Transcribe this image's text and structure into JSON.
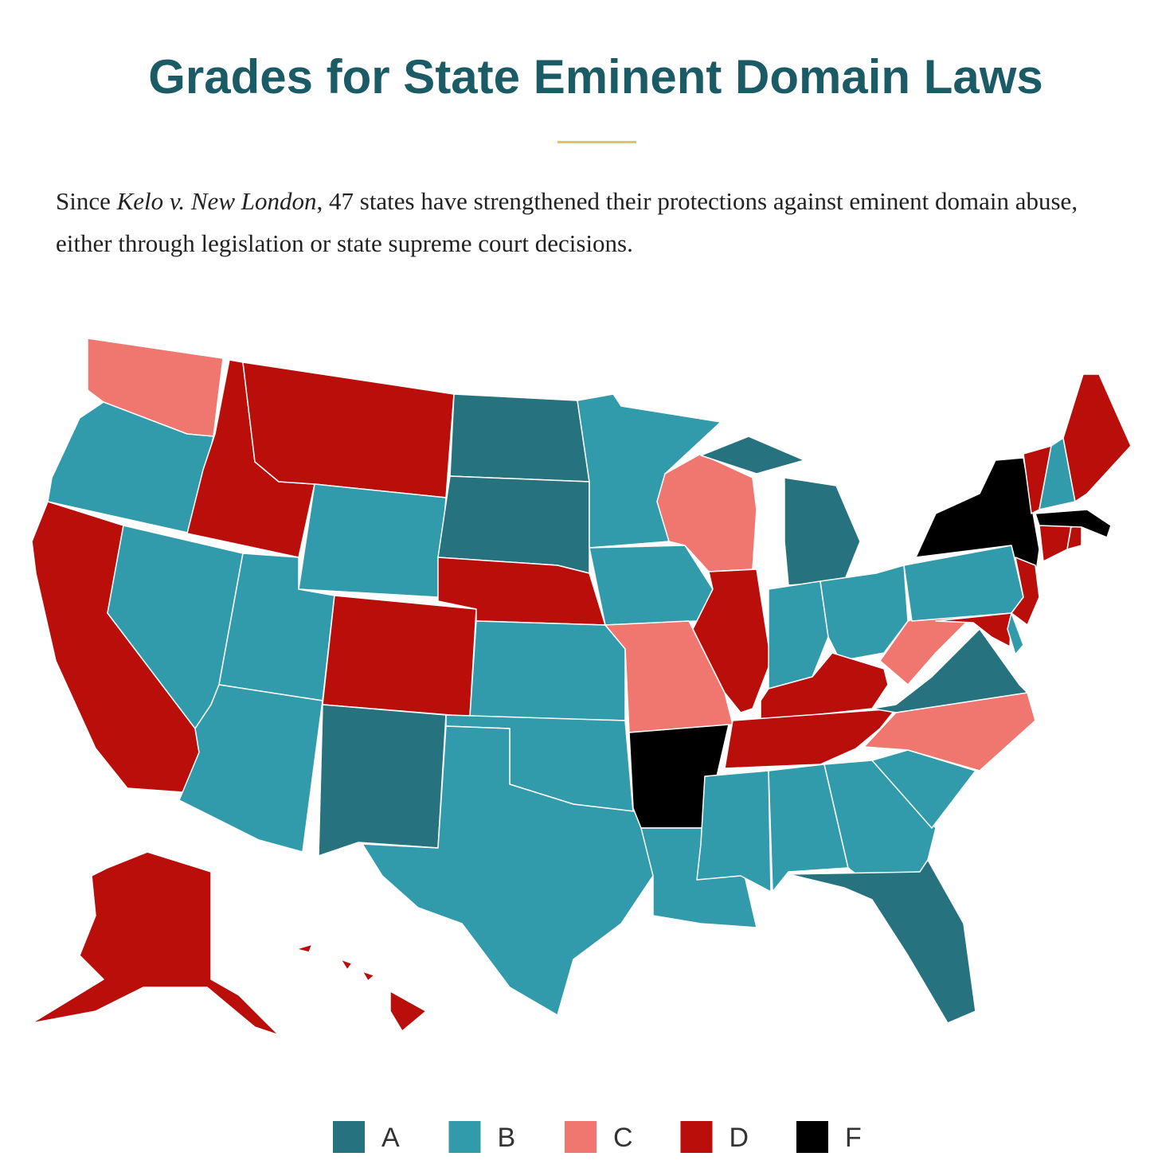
{
  "title": "Grades for State Eminent Domain Laws",
  "subtitle": {
    "before": "Since ",
    "italic": "Kelo v. New London",
    "after": ", 47 states have strengthened their protections against eminent domain abuse, either through legislation or state supreme court decisions."
  },
  "legend": [
    {
      "label": "A",
      "color": "#26737f"
    },
    {
      "label": "B",
      "color": "#319bab"
    },
    {
      "label": "C",
      "color": "#ef7770"
    },
    {
      "label": "D",
      "color": "#b90e0a"
    },
    {
      "label": "F",
      "color": "#000000"
    }
  ],
  "state_grades": [
    "C",
    "B",
    "D",
    "D",
    "B",
    "D",
    "B",
    "B",
    "B",
    "D",
    "A",
    "A",
    "A",
    "D",
    "B",
    "B",
    "B",
    "B",
    "B",
    "C",
    "F",
    "B",
    "C",
    "D",
    "A",
    "B",
    "B",
    "D",
    "D",
    "B",
    "B",
    "B",
    "A",
    "B",
    "C",
    "A",
    "C",
    "B",
    "F",
    "D",
    "B",
    "D",
    "D",
    "D",
    "F",
    "D",
    "B",
    "D",
    "D",
    "D"
  ]
}
